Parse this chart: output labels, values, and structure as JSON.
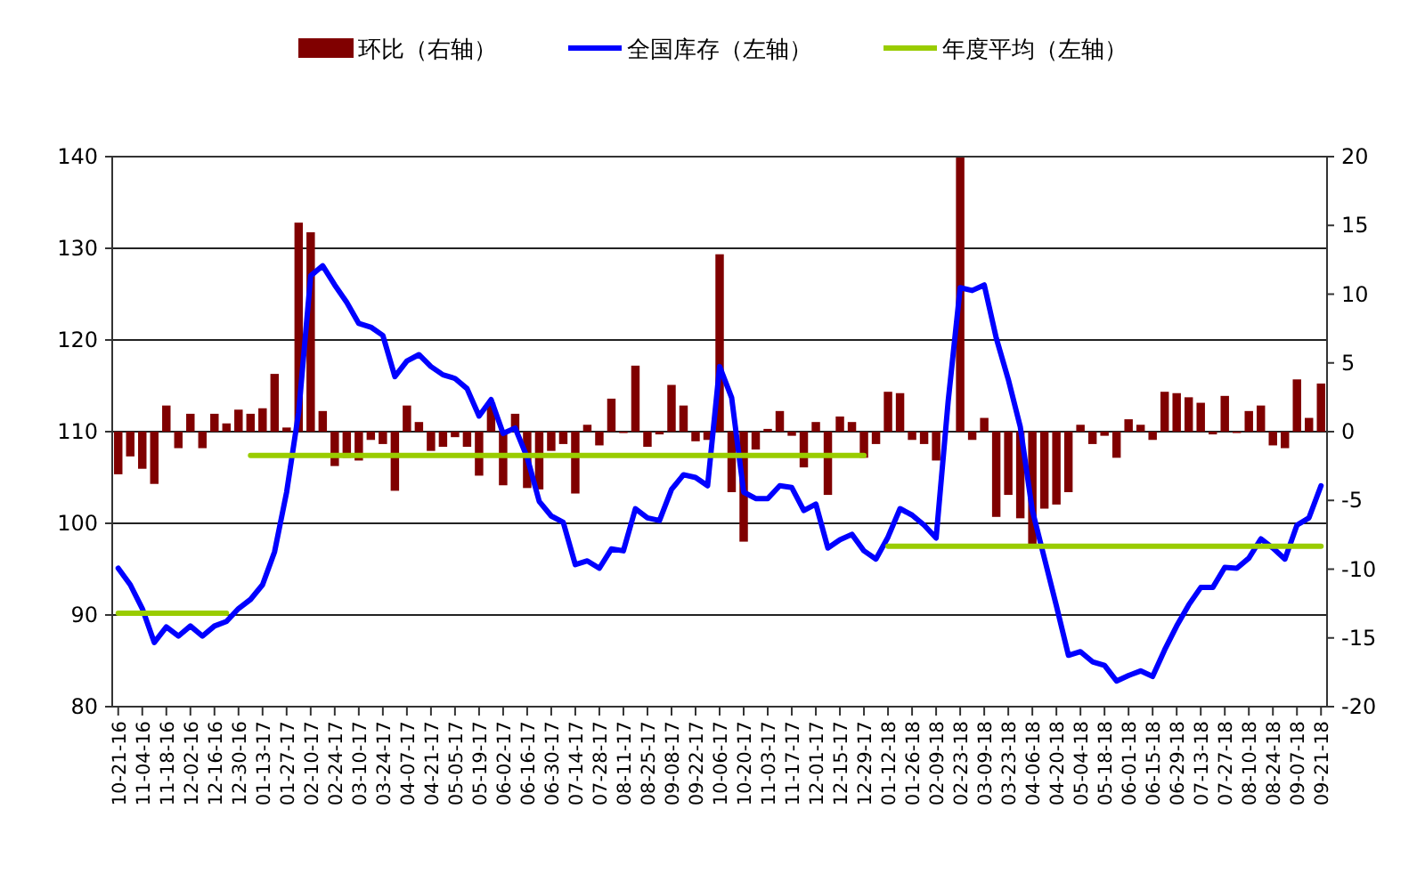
{
  "chart_data": {
    "type": "bar",
    "legend": "top",
    "grid": "y",
    "categories": [
      "10-21-16",
      null,
      "11-04-16",
      null,
      "11-18-16",
      null,
      "12-02-16",
      null,
      "12-16-16",
      null,
      "12-30-16",
      null,
      "01-13-17",
      null,
      "01-27-17",
      null,
      "02-10-17",
      null,
      "02-24-17",
      null,
      "03-10-17",
      null,
      "03-24-17",
      null,
      "04-07-17",
      null,
      "04-21-17",
      null,
      "05-05-17",
      null,
      "05-19-17",
      null,
      "06-02-17",
      null,
      "06-16-17",
      null,
      "06-30-17",
      null,
      "07-14-17",
      null,
      "07-28-17",
      null,
      "08-11-17",
      null,
      "08-25-17",
      null,
      "09-08-17",
      null,
      "09-22-17",
      null,
      "10-06-17",
      null,
      "10-20-17",
      null,
      "11-03-17",
      null,
      "11-17-17",
      null,
      "12-01-17",
      null,
      "12-15-17",
      null,
      "12-29-17",
      null,
      "01-12-18",
      null,
      "01-26-18",
      null,
      "02-09-18",
      null,
      "02-23-18",
      null,
      "03-09-18",
      null,
      "03-23-18",
      null,
      "04-06-18",
      null,
      "04-20-18",
      null,
      "05-04-18",
      null,
      "05-18-18",
      null,
      "06-01-18",
      null,
      "06-15-18",
      null,
      "06-29-18",
      null,
      "07-13-18",
      null,
      "07-27-18",
      null,
      "08-10-18",
      null,
      "08-24-18",
      null,
      "09-07-18",
      null,
      "09-21-18"
    ],
    "ylim": [
      80,
      140
    ],
    "yticks": [
      80,
      90,
      100,
      110,
      120,
      130,
      140
    ],
    "y2lim": [
      -20,
      20
    ],
    "y2ticks": [
      -20,
      -15,
      -10,
      -5,
      0,
      5,
      10,
      15,
      20
    ],
    "series": [
      {
        "name": "环比（右轴）",
        "axis": "y2",
        "color": "#800000",
        "values": [
          -3.1,
          -1.8,
          -2.7,
          -3.8,
          1.9,
          -1.2,
          1.3,
          -1.2,
          1.3,
          0.6,
          1.6,
          1.3,
          1.7,
          4.2,
          0.3,
          15.2,
          14.5,
          1.5,
          -2.5,
          -1.9,
          -2.1,
          -0.6,
          -0.9,
          -4.3,
          1.9,
          0.7,
          -1.4,
          -1.1,
          -0.4,
          -1.1,
          -3.2,
          2.1,
          -3.9,
          1.3,
          -4.1,
          -4.2,
          -1.4,
          -0.9,
          -4.5,
          0.5,
          -1.0,
          2.4,
          -0.1,
          4.8,
          -1.1,
          -0.2,
          3.4,
          1.9,
          -0.7,
          -0.6,
          12.9,
          -4.4,
          -8.0,
          -1.3,
          0.2,
          1.5,
          -0.3,
          -2.6,
          0.7,
          -4.6,
          1.1,
          0.7,
          -1.9,
          -0.9,
          2.9,
          2.8,
          -0.6,
          -0.9,
          -2.1,
          null,
          20,
          -0.6,
          1.0,
          -6.2,
          -4.6,
          -6.3,
          -8.4,
          -5.6,
          -5.3,
          -4.4,
          0.5,
          -0.9,
          -0.3,
          -1.9,
          0.9,
          0.5,
          -0.6,
          2.9,
          2.8,
          2.5,
          2.1,
          -0.2,
          2.6,
          -0.1,
          1.5,
          1.9,
          -1.0,
          -1.2,
          3.8,
          1.0,
          3.5
        ]
      },
      {
        "name": "全国库存（左轴）",
        "type": "line",
        "color": "#0000ff",
        "values": [
          95.1,
          93.3,
          90.7,
          87.0,
          88.7,
          87.7,
          88.8,
          87.7,
          88.8,
          89.3,
          90.7,
          91.7,
          93.3,
          96.9,
          103.4,
          112.1,
          127.0,
          128.1,
          126.0,
          124.1,
          121.8,
          121.4,
          120.5,
          116.0,
          117.7,
          118.4,
          117.1,
          116.2,
          115.8,
          114.7,
          111.7,
          113.5,
          109.8,
          110.4,
          107.2,
          102.4,
          100.8,
          100.1,
          95.5,
          95.9,
          95.1,
          97.2,
          97.0,
          101.6,
          100.6,
          100.3,
          103.7,
          105.3,
          105.0,
          104.1,
          117.1,
          113.7,
          103.4,
          102.7,
          102.7,
          104.1,
          103.9,
          101.4,
          102.1,
          97.3,
          98.2,
          98.8,
          97.0,
          96.1,
          98.5,
          101.6,
          100.9,
          99.8,
          98.4,
          113.3,
          125.7,
          125.4,
          126.0,
          120.2,
          115.7,
          110.5,
          101.4,
          96.2,
          91.0,
          85.6,
          86.0,
          84.9,
          84.5,
          82.8,
          83.4,
          83.9,
          83.3,
          86.2,
          88.8,
          91.1,
          93.0,
          93.0,
          95.2,
          95.1,
          96.2,
          98.3,
          97.3,
          96.1,
          99.8,
          100.6,
          104.1
        ]
      },
      {
        "name": "年度平均（左轴）",
        "type": "line",
        "color": "#99cc00",
        "values": [
          90.2,
          90.2,
          90.2,
          90.2,
          90.2,
          90.2,
          90.2,
          90.2,
          90.2,
          90.2,
          null,
          107.4,
          107.4,
          107.4,
          107.4,
          107.4,
          107.4,
          107.4,
          107.4,
          107.4,
          107.4,
          107.4,
          107.4,
          107.4,
          107.4,
          107.4,
          107.4,
          107.4,
          107.4,
          107.4,
          107.4,
          107.4,
          107.4,
          107.4,
          107.4,
          107.4,
          107.4,
          107.4,
          107.4,
          107.4,
          107.4,
          107.4,
          107.4,
          107.4,
          107.4,
          107.4,
          107.4,
          107.4,
          107.4,
          107.4,
          107.4,
          107.4,
          107.4,
          107.4,
          107.4,
          107.4,
          107.4,
          107.4,
          107.4,
          107.4,
          107.4,
          107.4,
          107.4,
          null,
          97.5,
          97.5,
          97.5,
          97.5,
          97.5,
          97.5,
          97.5,
          97.5,
          97.5,
          97.5,
          97.5,
          97.5,
          97.5,
          97.5,
          97.5,
          97.5,
          97.5,
          97.5,
          97.5,
          97.5,
          97.5,
          97.5,
          97.5,
          97.5,
          97.5,
          97.5,
          97.5,
          97.5,
          97.5,
          97.5,
          97.5,
          97.5,
          97.5,
          97.5,
          97.5,
          97.5,
          97.5
        ]
      }
    ]
  }
}
